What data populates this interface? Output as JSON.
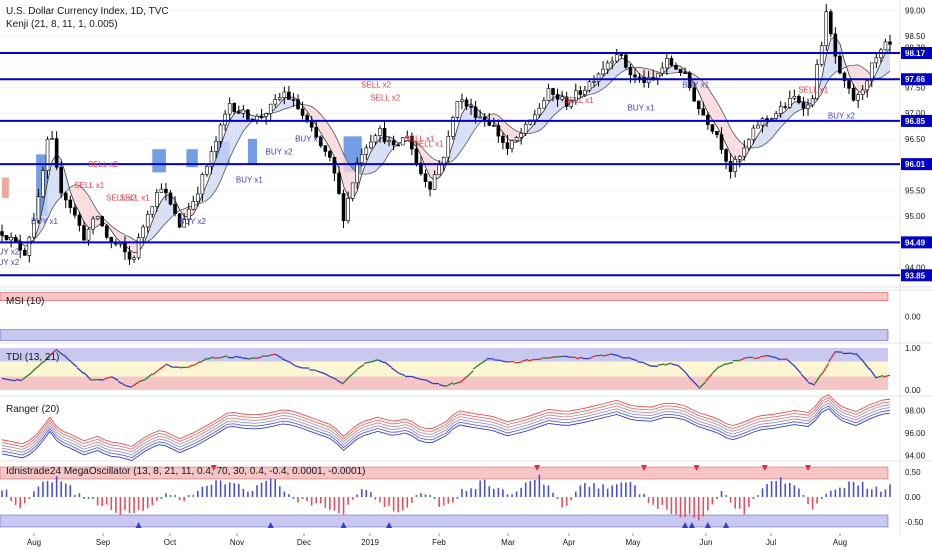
{
  "header": {
    "title": "U.S. Dollar Currency Index, 1D, TVC",
    "indicator": "Kenji (21, 8, 11, 1, 0.005)"
  },
  "colors": {
    "level": "#0000c8",
    "up": "#ffffff",
    "down": "#000000",
    "sell": "#e0404a",
    "buy": "#4040c0",
    "zone_red": "#f6c6c6",
    "zone_blue": "#c8c8f0",
    "zone_yellow": "#fdf6d2"
  },
  "chart_data": [
    {
      "type": "candlestick",
      "title": "U.S. Dollar Currency Index, 1D, TVC",
      "indicator_label": "Kenji (21, 8, 11, 1, 0.005)",
      "x_ticks": [
        "Aug",
        "Sep",
        "Oct",
        "Nov",
        "Dec",
        "2019",
        "Feb",
        "Mar",
        "Apr",
        "May",
        "Jun",
        "Jul",
        "Aug"
      ],
      "y_ticks": [
        "99.00",
        "98.50",
        "97.50",
        "97.00",
        "96.50",
        "95.50",
        "95.00",
        "94.00"
      ],
      "ylim": [
        93.7,
        99.2
      ],
      "levels": [
        "98.17",
        "97.66",
        "96.85",
        "96.01",
        "94.49",
        "93.85"
      ],
      "current_price": "98.28",
      "price_path": [
        [
          0,
          94.7
        ],
        [
          5,
          94.5
        ],
        [
          10,
          94.3
        ],
        [
          16,
          95.3
        ],
        [
          21,
          96.7
        ],
        [
          25,
          95.6
        ],
        [
          30,
          95.2
        ],
        [
          36,
          94.6
        ],
        [
          42,
          95.0
        ],
        [
          47,
          94.5
        ],
        [
          52,
          94.4
        ],
        [
          57,
          94.1
        ],
        [
          64,
          95.1
        ],
        [
          70,
          95.6
        ],
        [
          78,
          94.8
        ],
        [
          85,
          95.4
        ],
        [
          92,
          96.2
        ],
        [
          100,
          97.2
        ],
        [
          105,
          97.0
        ],
        [
          112,
          96.9
        ],
        [
          118,
          97.1
        ],
        [
          124,
          97.4
        ],
        [
          130,
          97.1
        ],
        [
          138,
          96.5
        ],
        [
          145,
          96.0
        ],
        [
          150,
          95.0
        ],
        [
          157,
          96.2
        ],
        [
          165,
          96.7
        ],
        [
          172,
          96.3
        ],
        [
          178,
          96.6
        ],
        [
          183,
          95.9
        ],
        [
          188,
          95.6
        ],
        [
          195,
          96.3
        ],
        [
          200,
          97.3
        ],
        [
          208,
          97.0
        ],
        [
          215,
          96.8
        ],
        [
          222,
          96.3
        ],
        [
          230,
          96.7
        ],
        [
          240,
          97.4
        ],
        [
          248,
          97.2
        ],
        [
          256,
          97.5
        ],
        [
          262,
          97.8
        ],
        [
          270,
          98.2
        ],
        [
          277,
          97.7
        ],
        [
          285,
          97.6
        ],
        [
          292,
          98.0
        ],
        [
          299,
          97.8
        ],
        [
          306,
          97.1
        ],
        [
          314,
          96.6
        ],
        [
          320,
          95.9
        ],
        [
          325,
          96.2
        ],
        [
          332,
          96.8
        ],
        [
          340,
          97.0
        ],
        [
          348,
          97.3
        ],
        [
          355,
          97.1
        ],
        [
          362,
          98.9
        ],
        [
          368,
          97.7
        ],
        [
          375,
          97.2
        ],
        [
          382,
          97.9
        ],
        [
          388,
          98.3
        ]
      ],
      "signals": [
        {
          "label": "SELL x2",
          "kind": "sell",
          "d": 43,
          "p": 95.95
        },
        {
          "label": "SELL x1",
          "kind": "sell",
          "d": 37,
          "p": 95.55
        },
        {
          "label": "SELL x2",
          "kind": "sell",
          "d": 51,
          "p": 95.3
        },
        {
          "label": "SELL x1",
          "kind": "sell",
          "d": 57,
          "p": 95.3
        },
        {
          "label": "SELL x2",
          "kind": "sell",
          "d": 163,
          "p": 97.5
        },
        {
          "label": "SELL x2",
          "kind": "sell",
          "d": 167,
          "p": 97.25
        },
        {
          "label": "SELL x1",
          "kind": "sell",
          "d": 182,
          "p": 96.45
        },
        {
          "label": "SELL x1",
          "kind": "sell",
          "d": 186,
          "p": 96.35
        },
        {
          "label": "SELL x1",
          "kind": "sell",
          "d": 252,
          "p": 97.2
        },
        {
          "label": "SELL x1",
          "kind": "sell",
          "d": 355,
          "p": 97.4
        },
        {
          "label": "BUY x2",
          "kind": "buy",
          "d": 1,
          "p": 94.25
        },
        {
          "label": "BUY x2",
          "kind": "buy",
          "d": 1,
          "p": 94.05
        },
        {
          "label": "BUY x1",
          "kind": "buy",
          "d": 18,
          "p": 94.85
        },
        {
          "label": "BUY x2",
          "kind": "buy",
          "d": 83,
          "p": 94.85
        },
        {
          "label": "BUY x1",
          "kind": "buy",
          "d": 108,
          "p": 95.65
        },
        {
          "label": "BUY x2",
          "kind": "buy",
          "d": 121,
          "p": 96.2
        },
        {
          "label": "BUY x1",
          "kind": "buy",
          "d": 134,
          "p": 96.45
        },
        {
          "label": "BUY x1",
          "kind": "buy",
          "d": 280,
          "p": 97.05
        },
        {
          "label": "BUY x1",
          "kind": "buy",
          "d": 304,
          "p": 97.5
        },
        {
          "label": "BUY x2",
          "kind": "buy",
          "d": 368,
          "p": 96.9
        }
      ]
    },
    {
      "type": "line",
      "title": "MSI (10)",
      "y_ticks": [
        "0.00"
      ],
      "zones": {
        "red": [
          0.6,
          0.9
        ],
        "blue": [
          -0.9,
          -0.5
        ]
      },
      "ylim": [
        -1,
        1
      ]
    },
    {
      "type": "line",
      "title": "TDI (13, 21)",
      "y_ticks": [
        "1.00",
        "0.00"
      ],
      "ylim": [
        -0.12,
        1.12
      ],
      "path": [
        [
          0,
          0.3
        ],
        [
          8,
          0.2
        ],
        [
          16,
          0.55
        ],
        [
          24,
          0.95
        ],
        [
          32,
          0.6
        ],
        [
          40,
          0.2
        ],
        [
          48,
          0.3
        ],
        [
          56,
          0.05
        ],
        [
          64,
          0.3
        ],
        [
          72,
          0.6
        ],
        [
          80,
          0.5
        ],
        [
          90,
          0.75
        ],
        [
          100,
          0.8
        ],
        [
          110,
          0.75
        ],
        [
          120,
          0.85
        ],
        [
          130,
          0.55
        ],
        [
          140,
          0.45
        ],
        [
          150,
          0.15
        ],
        [
          158,
          0.6
        ],
        [
          166,
          0.75
        ],
        [
          176,
          0.35
        ],
        [
          184,
          0.25
        ],
        [
          194,
          0.1
        ],
        [
          202,
          0.2
        ],
        [
          212,
          0.75
        ],
        [
          224,
          0.65
        ],
        [
          236,
          0.75
        ],
        [
          246,
          0.8
        ],
        [
          256,
          0.75
        ],
        [
          266,
          0.85
        ],
        [
          276,
          0.75
        ],
        [
          286,
          0.55
        ],
        [
          296,
          0.65
        ],
        [
          306,
          0.05
        ],
        [
          316,
          0.6
        ],
        [
          326,
          0.75
        ],
        [
          336,
          0.8
        ],
        [
          346,
          0.7
        ],
        [
          356,
          0.05
        ],
        [
          366,
          0.9
        ],
        [
          376,
          0.85
        ],
        [
          384,
          0.3
        ],
        [
          390,
          0.35
        ]
      ]
    },
    {
      "type": "line",
      "title": "Ranger (20)",
      "y_ticks": [
        "98.00",
        "96.00",
        "94.00"
      ],
      "ylim": [
        93.6,
        99.2
      ]
    },
    {
      "type": "bar",
      "title": "Idnistrade24 MegaOscillator (13, 8, 21, 11, 0.4, 70, 30, 0.4, -0.4, 0.0001, -0.0001)",
      "y_ticks": [
        "0.50",
        "0.00",
        "-0.50"
      ],
      "ylim": [
        -0.7,
        0.7
      ],
      "sell_markers": [
        93,
        235,
        282,
        305,
        335,
        354
      ],
      "buy_markers": [
        60,
        118,
        150,
        170,
        300,
        303,
        310,
        318
      ],
      "hist_path": [
        [
          0,
          0.2
        ],
        [
          8,
          -0.3
        ],
        [
          16,
          0.2
        ],
        [
          24,
          0.35
        ],
        [
          32,
          0.1
        ],
        [
          40,
          -0.1
        ],
        [
          48,
          -0.25
        ],
        [
          56,
          -0.35
        ],
        [
          64,
          -0.2
        ],
        [
          72,
          0.05
        ],
        [
          80,
          -0.15
        ],
        [
          90,
          0.25
        ],
        [
          100,
          0.3
        ],
        [
          110,
          0.15
        ],
        [
          120,
          0.35
        ],
        [
          130,
          -0.1
        ],
        [
          140,
          -0.2
        ],
        [
          150,
          -0.3
        ],
        [
          158,
          0.2
        ],
        [
          166,
          -0.1
        ],
        [
          176,
          -0.3
        ],
        [
          184,
          0.15
        ],
        [
          194,
          -0.2
        ],
        [
          202,
          0.1
        ],
        [
          212,
          0.3
        ],
        [
          224,
          0.05
        ],
        [
          236,
          0.4
        ],
        [
          246,
          -0.2
        ],
        [
          256,
          0.3
        ],
        [
          266,
          0.2
        ],
        [
          276,
          0.25
        ],
        [
          286,
          -0.15
        ],
        [
          296,
          -0.35
        ],
        [
          306,
          -0.45
        ],
        [
          316,
          0.05
        ],
        [
          326,
          -0.3
        ],
        [
          336,
          0.3
        ],
        [
          346,
          0.35
        ],
        [
          356,
          -0.2
        ],
        [
          366,
          0.2
        ],
        [
          376,
          0.3
        ],
        [
          384,
          0.15
        ],
        [
          390,
          0.2
        ]
      ]
    }
  ]
}
